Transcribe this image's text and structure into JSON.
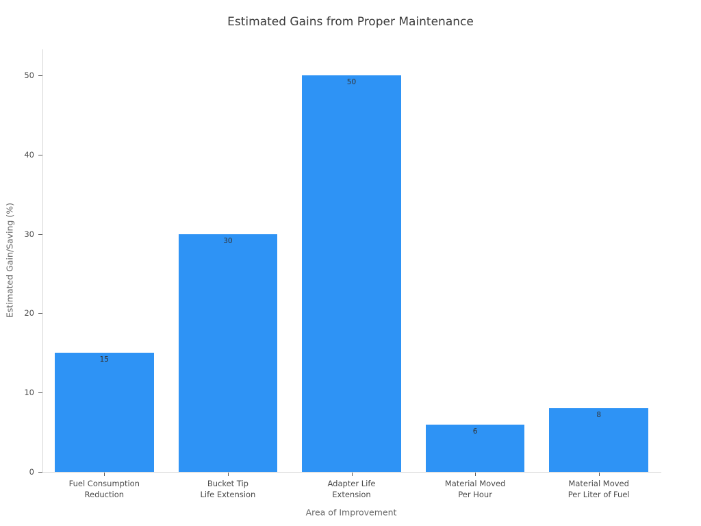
{
  "chart_data": {
    "type": "bar",
    "title": "Estimated Gains from Proper Maintenance",
    "xlabel": "Area of Improvement",
    "ylabel": "Estimated Gain/Saving (%)",
    "categories": [
      "Fuel Consumption\nReduction",
      "Bucket Tip\nLife Extension",
      "Adapter Life\nExtension",
      "Material Moved\nPer Hour",
      "Material Moved\nPer Liter of Fuel"
    ],
    "values": [
      15,
      30,
      50,
      6,
      8
    ],
    "bar_labels": [
      "15",
      "30",
      "50",
      "6",
      "8"
    ],
    "bar_label_position": "inside-top",
    "yticks": [
      0,
      10,
      20,
      30,
      40,
      50
    ],
    "ylim": [
      0,
      53.3
    ],
    "grid": false,
    "legend": null,
    "colors": {
      "bar": "#2e93f5",
      "axis_line": "#d8d8d8",
      "tick_text": "#4a4a4a",
      "title_text": "#3b3b3b",
      "axis_title_text": "#666666",
      "bar_label_text": "#333333"
    }
  }
}
